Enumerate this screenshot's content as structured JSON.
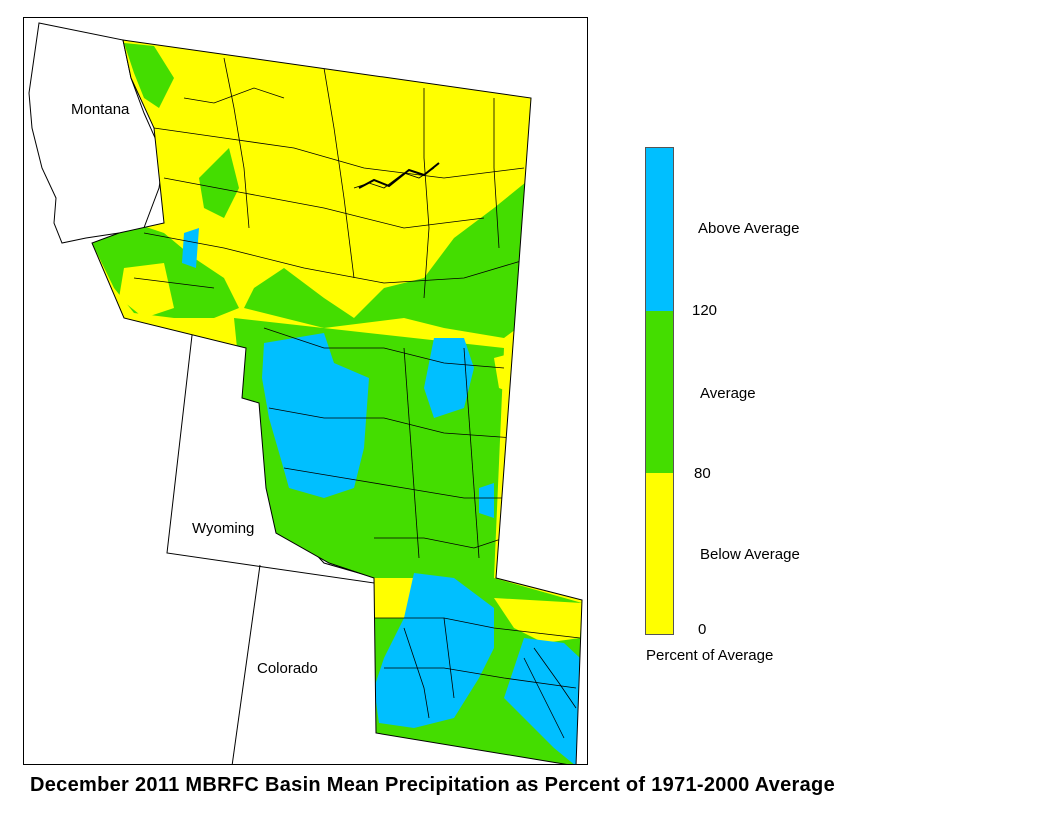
{
  "map": {
    "state_labels": {
      "montana": "Montana",
      "wyoming": "Wyoming",
      "colorado": "Colorado"
    }
  },
  "legend": {
    "categories": [
      {
        "label": "Above Average",
        "color": "#00bfff",
        "min": 120,
        "max": null
      },
      {
        "label": "Average",
        "color": "#44dd00",
        "min": 80,
        "max": 120
      },
      {
        "label": "Below Average",
        "color": "#ffff00",
        "min": 0,
        "max": 80
      }
    ],
    "ticks": {
      "t120": "120",
      "t80": "80",
      "t0": "0"
    },
    "title": "Percent of Average"
  },
  "caption": "December 2011 MBRFC Basin Mean Precipitation as Percent of 1971-2000 Average"
}
